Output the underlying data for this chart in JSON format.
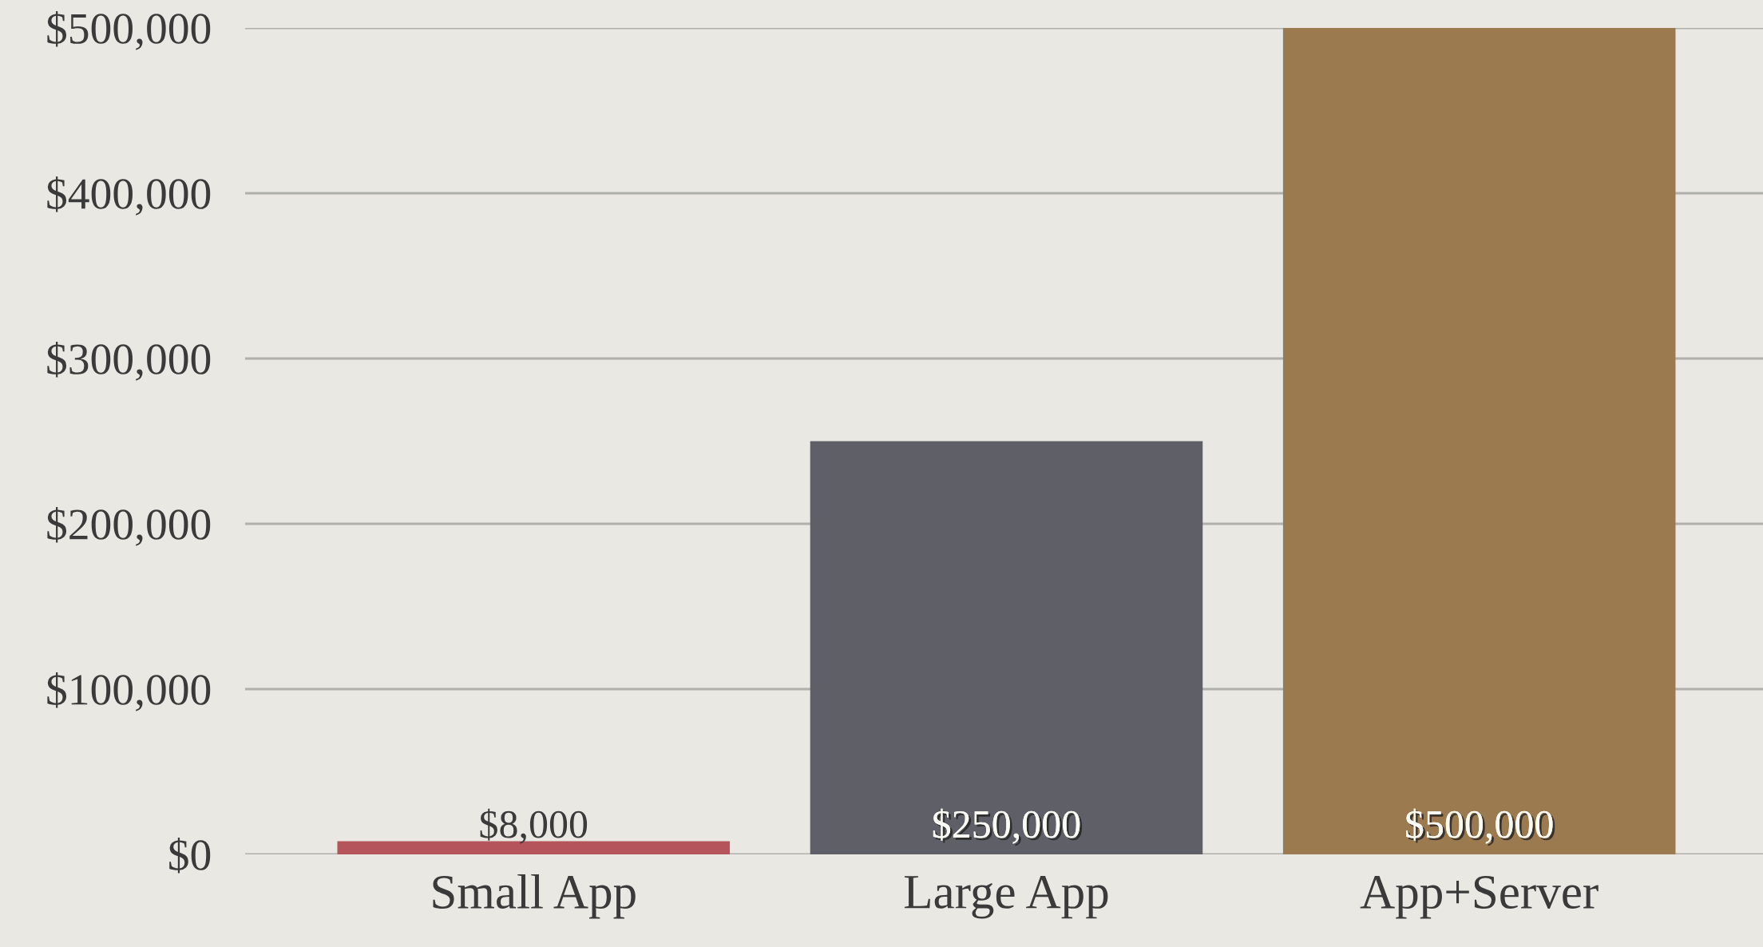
{
  "chart_data": {
    "type": "bar",
    "categories": [
      "Small App",
      "Large App",
      "App+Server"
    ],
    "values": [
      8000,
      250000,
      500000
    ],
    "colors": [
      "#b5545a",
      "#5f6067",
      "#9c7a50"
    ],
    "value_labels": [
      "$8,000",
      "$250,000",
      "$500,000"
    ],
    "ylim": [
      0,
      500000
    ],
    "yticks": [
      {
        "value": 0,
        "label": "$0"
      },
      {
        "value": 100000,
        "label": "$100,000"
      },
      {
        "value": 200000,
        "label": "$200,000"
      },
      {
        "value": 300000,
        "label": "$300,000"
      },
      {
        "value": 400000,
        "label": "$400,000"
      },
      {
        "value": 500000,
        "label": "$500,000"
      }
    ],
    "grid": "y",
    "legend": false
  }
}
